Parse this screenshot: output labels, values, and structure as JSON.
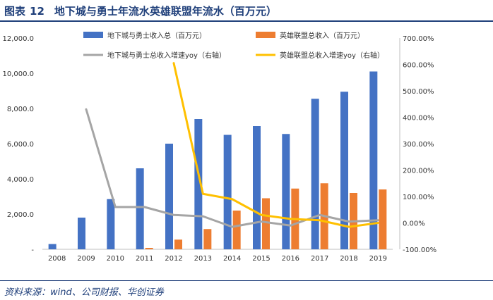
{
  "header": {
    "figure_label": "图表",
    "figure_number": "12",
    "title": "地下城与勇士年流水英雄联盟年流水（百万元）"
  },
  "footer": {
    "source": "资料来源：wind、公司财报、华创证券"
  },
  "colors": {
    "bar_dnf": "#4472c4",
    "bar_lol": "#ed7d31",
    "line_dnf": "#a5a5a5",
    "line_lol": "#ffc000",
    "title": "#1f3f7a"
  },
  "chart_data": {
    "type": "bar",
    "categories": [
      "2008",
      "2009",
      "2010",
      "2011",
      "2012",
      "2013",
      "2014",
      "2015",
      "2016",
      "2017",
      "2018",
      "2019"
    ],
    "y_left_ticks": [
      "12,000.0",
      "10,000.0",
      "8,000.0",
      "6,000.0",
      "4,000.0",
      "2,000.0",
      "-"
    ],
    "y_right_ticks": [
      "700.00%",
      "600.00%",
      "500.00%",
      "400.00%",
      "300.00%",
      "200.00%",
      "100.00%",
      "0.00%",
      "-100.00%"
    ],
    "ylim_left": [
      0,
      12000
    ],
    "ylim_right": [
      -100,
      700
    ],
    "series": [
      {
        "name": "地下城与勇士收入总（百万元）",
        "axis": "left",
        "kind": "bar",
        "values": [
          300,
          1800,
          2850,
          4600,
          6000,
          7400,
          6500,
          7000,
          6550,
          8550,
          8950,
          10100
        ]
      },
      {
        "name": "英雄联盟总收入（百万元）",
        "axis": "left",
        "kind": "bar",
        "values": [
          null,
          null,
          null,
          80,
          550,
          1150,
          2200,
          2900,
          3450,
          3750,
          3200,
          3400
        ]
      },
      {
        "name": "地下城与勇士总收入增速yoy（右轴）",
        "axis": "right",
        "kind": "line",
        "values": [
          null,
          430,
          60,
          60,
          30,
          25,
          -15,
          5,
          -10,
          30,
          5,
          10
        ]
      },
      {
        "name": "英雄联盟总收入增速yoy（右轴）",
        "axis": "right",
        "kind": "line",
        "values": [
          null,
          null,
          null,
          null,
          605,
          110,
          90,
          30,
          15,
          10,
          -15,
          0
        ]
      }
    ]
  }
}
